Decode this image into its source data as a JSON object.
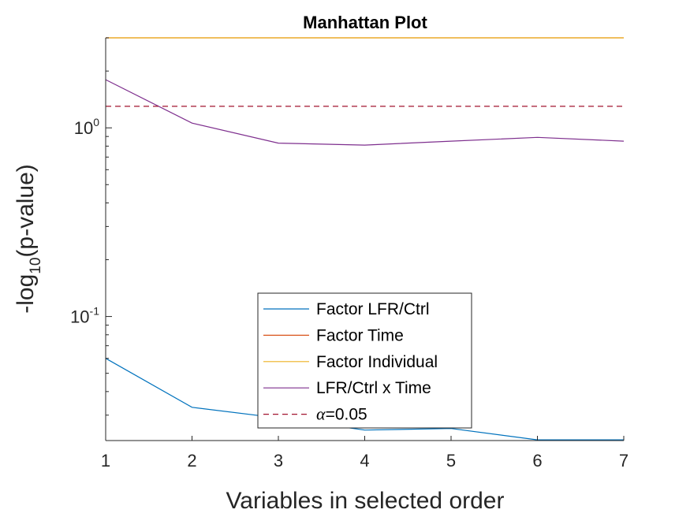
{
  "chart_data": {
    "type": "line",
    "title": "Manhattan Plot",
    "xlabel": "Variables in selected order",
    "ylabel": {
      "prefix": "-log",
      "subscript": "10",
      "suffix": "(p-value)"
    },
    "yscale": "log",
    "xlim": [
      1,
      7
    ],
    "ylim": [
      0.022,
      3.0
    ],
    "x": [
      1,
      2,
      3,
      4,
      5,
      6,
      7
    ],
    "xticks": [
      "1",
      "2",
      "3",
      "4",
      "5",
      "6",
      "7"
    ],
    "yticks": [
      {
        "value": 0.1,
        "base": "10",
        "exp": "-1"
      },
      {
        "value": 1.0,
        "base": "10",
        "exp": "0"
      }
    ],
    "grid": false,
    "legend_position": "bottom-center",
    "series": [
      {
        "name": "Factor LFR/Ctrl",
        "color": "#0072BD",
        "dash": "solid",
        "values": [
          0.06,
          0.033,
          0.029,
          0.025,
          0.0255,
          0.0222,
          0.0222
        ]
      },
      {
        "name": "Factor Time",
        "color": "#D95319",
        "dash": "solid",
        "values": [
          3.0,
          3.0,
          3.0,
          3.0,
          3.0,
          3.0,
          3.0
        ]
      },
      {
        "name": "Factor Individual",
        "color": "#EDB120",
        "dash": "solid",
        "values": [
          3.0,
          3.0,
          3.0,
          3.0,
          3.0,
          3.0,
          3.0
        ]
      },
      {
        "name": "LFR/Ctrl x Time",
        "color": "#7E2F8E",
        "dash": "solid",
        "values": [
          1.8,
          1.06,
          0.83,
          0.81,
          0.85,
          0.89,
          0.85
        ]
      }
    ],
    "reference_line": {
      "alpha_symbol": "α",
      "label_rest": "=0.05",
      "value": 1.301,
      "color": "#A2142F",
      "dash": "dashed"
    }
  }
}
